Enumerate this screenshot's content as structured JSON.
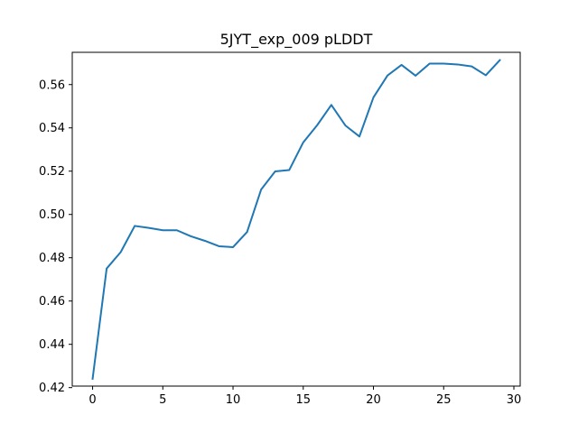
{
  "chart_data": {
    "type": "line",
    "title": "5JYT_exp_009 pLDDT",
    "xlabel": "",
    "ylabel": "",
    "xlim": [
      -1.45,
      30.45
    ],
    "ylim": [
      0.4207,
      0.5749
    ],
    "grid": false,
    "x_ticks": [
      0,
      5,
      10,
      15,
      20,
      25,
      30
    ],
    "y_ticks": [
      0.42,
      0.44,
      0.46,
      0.48,
      0.5,
      0.52,
      0.54,
      0.56
    ],
    "y_tick_labels": [
      "0.42",
      "0.44",
      "0.46",
      "0.48",
      "0.50",
      "0.52",
      "0.54",
      "0.56"
    ],
    "x": [
      0,
      1,
      2,
      3,
      4,
      5,
      6,
      7,
      8,
      9,
      10,
      11,
      12,
      13,
      14,
      15,
      16,
      17,
      18,
      19,
      20,
      21,
      22,
      23,
      24,
      25,
      26,
      27,
      28,
      29
    ],
    "series": [
      {
        "color": "#1f77b4",
        "values": [
          0.4241,
          0.475,
          0.4826,
          0.4947,
          0.4938,
          0.4927,
          0.4927,
          0.4899,
          0.4878,
          0.4853,
          0.4849,
          0.4919,
          0.5115,
          0.5199,
          0.5205,
          0.5333,
          0.5413,
          0.5506,
          0.5411,
          0.536,
          0.5541,
          0.5642,
          0.5691,
          0.5641,
          0.5697,
          0.5697,
          0.5693,
          0.5684,
          0.5643,
          0.5713
        ]
      }
    ]
  }
}
